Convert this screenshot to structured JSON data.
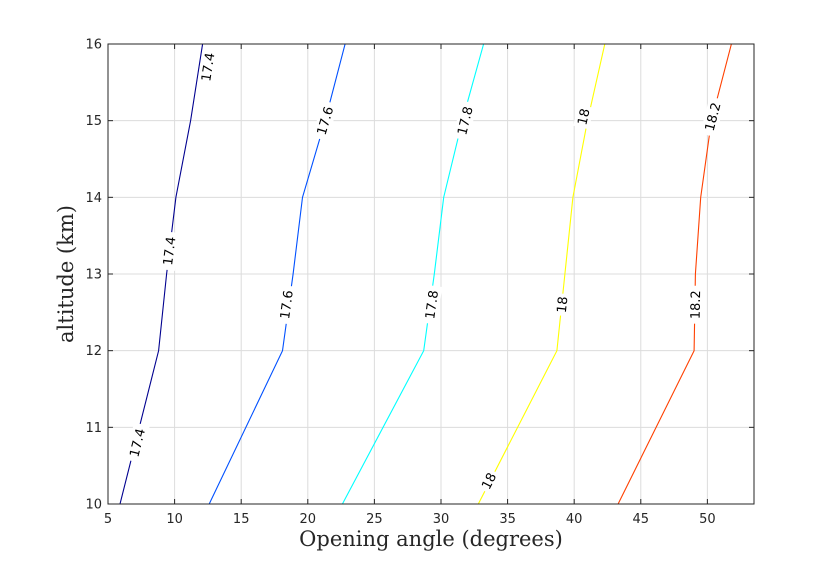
{
  "chart_data": {
    "type": "line",
    "subtype": "contour",
    "xlabel": "Opening angle (degrees)",
    "ylabel": "altitude (km)",
    "xlim": [
      5,
      53.5
    ],
    "ylim": [
      10,
      16
    ],
    "x_ticks": [
      "5",
      "10",
      "15",
      "20",
      "25",
      "30",
      "35",
      "40",
      "45",
      "50"
    ],
    "y_ticks": [
      "10",
      "11",
      "12",
      "13",
      "14",
      "15",
      "16"
    ],
    "grid": true,
    "series": [
      {
        "name": "17.4",
        "color": "#00008f",
        "points": [
          [
            5.9,
            10
          ],
          [
            8.8,
            12
          ],
          [
            9.4,
            13
          ],
          [
            10.1,
            14
          ],
          [
            11.2,
            15
          ],
          [
            12.1,
            16
          ]
        ],
        "labels": [
          {
            "text": "17.4",
            "x": 7.2,
            "y": 10.8
          },
          {
            "text": "17.4",
            "x": 9.6,
            "y": 13.3
          },
          {
            "text": "17.4",
            "x": 12.5,
            "y": 15.7
          }
        ]
      },
      {
        "name": "17.6",
        "color": "#0050ff",
        "points": [
          [
            12.6,
            10
          ],
          [
            18.1,
            12
          ],
          [
            18.9,
            13
          ],
          [
            19.6,
            14
          ],
          [
            21.3,
            15
          ],
          [
            22.8,
            16
          ]
        ],
        "labels": [
          {
            "text": "17.6",
            "x": 18.4,
            "y": 12.6
          },
          {
            "text": "17.6",
            "x": 21.3,
            "y": 15.0
          }
        ]
      },
      {
        "name": "17.8",
        "color": "#00ffff",
        "points": [
          [
            22.6,
            10
          ],
          [
            28.7,
            12
          ],
          [
            29.5,
            13
          ],
          [
            30.2,
            14
          ],
          [
            31.6,
            15
          ],
          [
            33.2,
            16
          ]
        ],
        "labels": [
          {
            "text": "17.8",
            "x": 29.3,
            "y": 12.6
          },
          {
            "text": "17.8",
            "x": 31.8,
            "y": 15.0
          }
        ]
      },
      {
        "name": "18",
        "color": "#ffff00",
        "points": [
          [
            32.8,
            10
          ],
          [
            38.7,
            12
          ],
          [
            39.3,
            13
          ],
          [
            39.9,
            14
          ],
          [
            41.0,
            15
          ],
          [
            42.3,
            16
          ]
        ],
        "labels": [
          {
            "text": "18",
            "x": 33.6,
            "y": 10.3
          },
          {
            "text": "18",
            "x": 39.1,
            "y": 12.6
          },
          {
            "text": "18",
            "x": 40.7,
            "y": 15.05
          }
        ]
      },
      {
        "name": "18.2",
        "color": "#ff4000",
        "points": [
          [
            43.3,
            10
          ],
          [
            49.0,
            12
          ],
          [
            49.1,
            13
          ],
          [
            49.5,
            14
          ],
          [
            50.3,
            15
          ],
          [
            51.8,
            16
          ]
        ],
        "labels": [
          {
            "text": "18.2",
            "x": 49.1,
            "y": 12.6
          },
          {
            "text": "18.2",
            "x": 50.4,
            "y": 15.05
          }
        ]
      }
    ]
  }
}
